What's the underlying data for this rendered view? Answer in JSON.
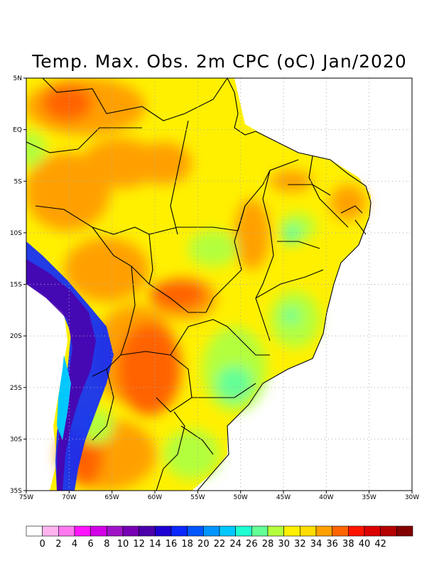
{
  "title": "Temp. Max. Obs. 2m CPC (oC) Jan/2020",
  "map": {
    "lon_range": [
      -75,
      -30
    ],
    "lat_range": [
      -35,
      5
    ],
    "lon_ticks": [
      {
        "value": -75,
        "label": "75W"
      },
      {
        "value": -70,
        "label": "70W"
      },
      {
        "value": -65,
        "label": "65W"
      },
      {
        "value": -60,
        "label": "60W"
      },
      {
        "value": -55,
        "label": "55W"
      },
      {
        "value": -50,
        "label": "50W"
      },
      {
        "value": -45,
        "label": "45W"
      },
      {
        "value": -40,
        "label": "40W"
      },
      {
        "value": -35,
        "label": "35W"
      },
      {
        "value": -30,
        "label": "30W"
      }
    ],
    "lat_ticks": [
      {
        "value": 5,
        "label": "5N"
      },
      {
        "value": 0,
        "label": "EQ"
      },
      {
        "value": -5,
        "label": "5S"
      },
      {
        "value": -10,
        "label": "10S"
      },
      {
        "value": -15,
        "label": "15S"
      },
      {
        "value": -20,
        "label": "20S"
      },
      {
        "value": -25,
        "label": "25S"
      },
      {
        "value": -30,
        "label": "30S"
      },
      {
        "value": -35,
        "label": "35S"
      }
    ],
    "grid": true
  },
  "colorbar": {
    "labels": [
      "0",
      "2",
      "4",
      "6",
      "8",
      "10",
      "12",
      "14",
      "16",
      "18",
      "20",
      "22",
      "24",
      "26",
      "28",
      "30",
      "32",
      "34",
      "36",
      "38",
      "40",
      "42"
    ],
    "colors": [
      "#ffffff",
      "#ffb4f0",
      "#ff78f0",
      "#ff14ff",
      "#d200e6",
      "#a014c8",
      "#7800b4",
      "#4b00aa",
      "#1e00d2",
      "#0a28ff",
      "#0055ff",
      "#0096ff",
      "#00c8ff",
      "#1effd2",
      "#64ff96",
      "#b4ff3c",
      "#fff000",
      "#ffdc00",
      "#ffa000",
      "#ff6400",
      "#ff1400",
      "#dc0000",
      "#b40000",
      "#820000"
    ]
  }
}
